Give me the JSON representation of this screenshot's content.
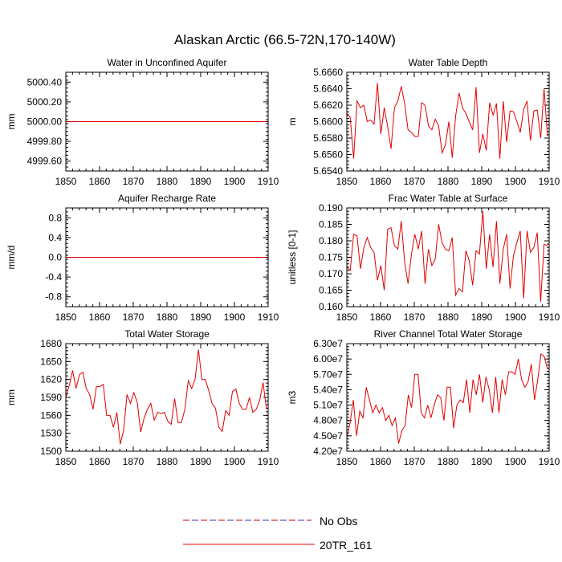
{
  "page_title": "Alaskan Arctic (66.5-72N,170-140W)",
  "legend": {
    "entries": [
      {
        "label": "No Obs",
        "style": "dashed",
        "colors": [
          "#cc0000",
          "#3333cc"
        ]
      },
      {
        "label": "20TR_161",
        "style": "solid",
        "colors": [
          "#e00000"
        ]
      }
    ]
  },
  "chart_data": [
    {
      "type": "line",
      "title": "Water in Unconfined Aquifer",
      "ylabel": "mm",
      "xlim": [
        1850,
        1910
      ],
      "ylim": [
        4999.5,
        5000.5
      ],
      "x_ticks": [
        1850,
        1860,
        1870,
        1880,
        1890,
        1900,
        1910
      ],
      "y_ticks": [
        4999.6,
        4999.8,
        5000.0,
        5000.2,
        5000.4
      ],
      "y_tick_labels": [
        "4999.60",
        "4999.80",
        "5000.00",
        "5000.20",
        "5000.40"
      ],
      "x_start": 1850,
      "color": "#e00000",
      "values": [
        5000,
        5000,
        5000,
        5000,
        5000,
        5000,
        5000,
        5000,
        5000,
        5000,
        5000,
        5000,
        5000,
        5000,
        5000,
        5000,
        5000,
        5000,
        5000,
        5000,
        5000,
        5000,
        5000,
        5000,
        5000,
        5000,
        5000,
        5000,
        5000,
        5000,
        5000,
        5000,
        5000,
        5000,
        5000,
        5000,
        5000,
        5000,
        5000,
        5000,
        5000,
        5000,
        5000,
        5000,
        5000,
        5000,
        5000,
        5000,
        5000,
        5000,
        5000,
        5000,
        5000,
        5000,
        5000,
        5000,
        5000,
        5000,
        5000,
        5000
      ]
    },
    {
      "type": "line",
      "title": "Water Table Depth",
      "ylabel": "m",
      "xlim": [
        1850,
        1910
      ],
      "ylim": [
        5.654,
        5.666
      ],
      "x_ticks": [
        1850,
        1860,
        1870,
        1880,
        1890,
        1900,
        1910
      ],
      "y_ticks": [
        5.654,
        5.656,
        5.658,
        5.66,
        5.662,
        5.664,
        5.666
      ],
      "y_tick_labels": [
        "5.6540",
        "5.6560",
        "5.6580",
        "5.6600",
        "5.6620",
        "5.6640",
        "5.6660"
      ],
      "x_start": 1850,
      "color": "#e00000",
      "values": [
        5.661,
        5.6605,
        5.6555,
        5.6625,
        5.6617,
        5.662,
        5.66,
        5.6602,
        5.6597,
        5.6647,
        5.6585,
        5.6617,
        5.6594,
        5.6567,
        5.6617,
        5.6625,
        5.6643,
        5.6622,
        5.659,
        5.6587,
        5.6582,
        5.6582,
        5.6623,
        5.662,
        5.6595,
        5.659,
        5.6603,
        5.6595,
        5.6562,
        5.6572,
        5.66,
        5.6556,
        5.6607,
        5.6635,
        5.6617,
        5.661,
        5.66,
        5.659,
        5.6642,
        5.6562,
        5.6585,
        5.6565,
        5.6623,
        5.6608,
        5.6622,
        5.6555,
        5.6625,
        5.6575,
        5.6613,
        5.6612,
        5.66,
        5.6587,
        5.6615,
        5.6625,
        5.6577,
        5.6613,
        5.6614,
        5.658,
        5.664,
        5.6582
      ]
    },
    {
      "type": "line",
      "title": "Aquifer Recharge Rate",
      "ylabel": "mm/d",
      "xlim": [
        1850,
        1910
      ],
      "ylim": [
        -1.0,
        1.0
      ],
      "x_ticks": [
        1850,
        1860,
        1870,
        1880,
        1890,
        1900,
        1910
      ],
      "y_ticks": [
        -0.8,
        -0.4,
        0.0,
        0.4,
        0.8
      ],
      "y_tick_labels": [
        "-0.8",
        "-0.4",
        "0.0",
        "0.4",
        "0.8"
      ],
      "x_start": 1850,
      "color": "#e00000",
      "values": [
        0,
        0,
        0,
        0,
        0,
        0,
        0,
        0,
        0,
        0,
        0,
        0,
        0,
        0,
        0,
        0,
        0,
        0,
        0,
        0,
        0,
        0,
        0,
        0,
        0,
        0,
        0,
        0,
        0,
        0,
        0,
        0,
        0,
        0,
        0,
        0,
        0,
        0,
        0,
        0,
        0,
        0,
        0,
        0,
        0,
        0,
        0,
        0,
        0,
        0,
        0,
        0,
        0,
        0,
        0,
        0,
        0,
        0,
        0,
        0
      ]
    },
    {
      "type": "line",
      "title": "Frac Water Table at Surface",
      "ylabel": "unitless [0-1]",
      "xlim": [
        1850,
        1910
      ],
      "ylim": [
        0.16,
        0.19
      ],
      "x_ticks": [
        1850,
        1860,
        1870,
        1880,
        1890,
        1900,
        1910
      ],
      "y_ticks": [
        0.16,
        0.165,
        0.17,
        0.175,
        0.18,
        0.185,
        0.19
      ],
      "y_tick_labels": [
        "0.160",
        "0.165",
        "0.170",
        "0.175",
        "0.180",
        "0.185",
        "0.190"
      ],
      "x_start": 1850,
      "color": "#e00000",
      "values": [
        0.172,
        0.171,
        0.182,
        0.1815,
        0.1715,
        0.178,
        0.181,
        0.178,
        0.1765,
        0.168,
        0.1725,
        0.165,
        0.1835,
        0.184,
        0.1785,
        0.1775,
        0.186,
        0.1735,
        0.167,
        0.176,
        0.182,
        0.1775,
        0.183,
        0.167,
        0.1775,
        0.1725,
        0.1745,
        0.185,
        0.1795,
        0.1775,
        0.177,
        0.181,
        0.1635,
        0.1655,
        0.1645,
        0.177,
        0.174,
        0.1665,
        0.177,
        0.176,
        0.189,
        0.1715,
        0.182,
        0.172,
        0.186,
        0.167,
        0.1775,
        0.182,
        0.1655,
        0.1755,
        0.1795,
        0.183,
        0.1625,
        0.183,
        0.1765,
        0.178,
        0.1825,
        0.1615,
        0.179,
        0.1785
      ]
    },
    {
      "type": "line",
      "title": "Total Water Storage",
      "ylabel": "mm",
      "xlim": [
        1850,
        1910
      ],
      "ylim": [
        1500,
        1680
      ],
      "x_ticks": [
        1850,
        1860,
        1870,
        1880,
        1890,
        1900,
        1910
      ],
      "y_ticks": [
        1500,
        1530,
        1560,
        1590,
        1620,
        1650,
        1680
      ],
      "y_tick_labels": [
        "1500",
        "1530",
        "1560",
        "1590",
        "1620",
        "1650",
        "1680"
      ],
      "x_start": 1850,
      "color": "#e00000",
      "values": [
        1590,
        1610,
        1635,
        1605,
        1628,
        1632,
        1605,
        1595,
        1570,
        1608,
        1608,
        1612,
        1560,
        1560,
        1540,
        1565,
        1512,
        1535,
        1595,
        1580,
        1598,
        1582,
        1532,
        1555,
        1570,
        1580,
        1552,
        1565,
        1563,
        1565,
        1550,
        1545,
        1588,
        1548,
        1548,
        1570,
        1618,
        1605,
        1620,
        1670,
        1620,
        1620,
        1602,
        1580,
        1572,
        1540,
        1533,
        1568,
        1560,
        1600,
        1604,
        1580,
        1570,
        1570,
        1590,
        1565,
        1570,
        1585,
        1615,
        1570
      ]
    },
    {
      "type": "line",
      "title": "River Channel Total Water Storage",
      "ylabel": "m3",
      "xlim": [
        1850,
        1910
      ],
      "ylim": [
        42000000,
        63000000
      ],
      "x_ticks": [
        1850,
        1860,
        1870,
        1880,
        1890,
        1900,
        1910
      ],
      "y_ticks": [
        42000000,
        45000000,
        48000000,
        51000000,
        54000000,
        57000000,
        60000000,
        63000000
      ],
      "y_tick_labels": [
        "4.20e7",
        "4.50e7",
        "4.80e7",
        "5.10e7",
        "5.40e7",
        "5.70e7",
        "6.00e7",
        "6.30e7"
      ],
      "x_start": 1850,
      "color": "#e00000",
      "values": [
        44800000,
        47500000,
        52000000,
        45000000,
        49800000,
        48500000,
        54500000,
        52000000,
        49500000,
        51000000,
        49500000,
        50500000,
        48000000,
        49000000,
        47000000,
        48500000,
        43500000,
        46000000,
        47000000,
        53000000,
        50500000,
        57000000,
        57000000,
        49500000,
        48500000,
        51000000,
        48500000,
        51000000,
        53000000,
        52500000,
        48000000,
        54500000,
        54500000,
        46500000,
        51000000,
        52000000,
        51500000,
        56000000,
        49500000,
        56000000,
        53000000,
        57000000,
        51500000,
        56500000,
        54000000,
        49500000,
        56500000,
        49500000,
        56000000,
        53000000,
        57500000,
        57500000,
        57000000,
        60000000,
        56000000,
        54500000,
        55500000,
        59000000,
        52000000,
        56000000,
        61000000,
        60500000,
        58000000
      ]
    }
  ]
}
